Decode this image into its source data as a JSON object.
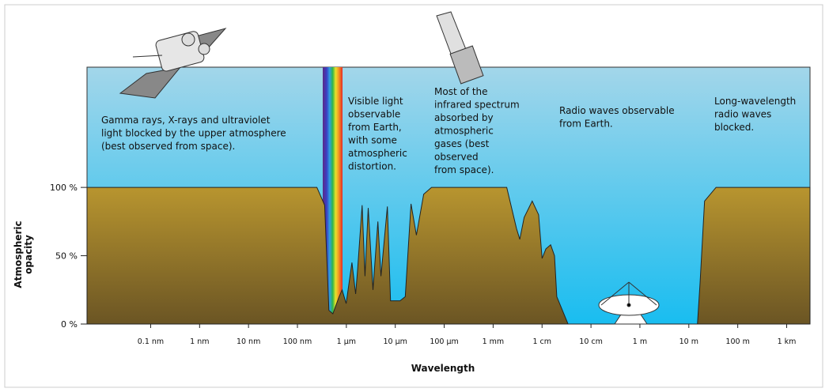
{
  "chart_data": {
    "type": "area",
    "x_label": "Wavelength",
    "y_label": [
      "Atmospheric",
      "opacity"
    ],
    "xscale": "log",
    "xlim": [
      5e-12,
      3000
    ],
    "ylim": [
      0,
      188
    ],
    "xticks": [
      {
        "value": 1e-10,
        "label": "0.1 nm"
      },
      {
        "value": 1e-09,
        "label": "1 nm"
      },
      {
        "value": 1e-08,
        "label": "10 nm"
      },
      {
        "value": 1e-07,
        "label": "100 nm"
      },
      {
        "value": 1e-06,
        "label": "1 µm"
      },
      {
        "value": 1e-05,
        "label": "10 µm"
      },
      {
        "value": 0.0001,
        "label": "100 µm"
      },
      {
        "value": 0.001,
        "label": "1 mm"
      },
      {
        "value": 0.01,
        "label": "1 cm"
      },
      {
        "value": 0.1,
        "label": "10 cm"
      },
      {
        "value": 1,
        "label": "1 m"
      },
      {
        "value": 10,
        "label": "10 m"
      },
      {
        "value": 100,
        "label": "100 m"
      },
      {
        "value": 1000,
        "label": "1 km"
      }
    ],
    "yticks": [
      {
        "value": 0,
        "label": "0 %"
      },
      {
        "value": 50,
        "label": "50 %"
      },
      {
        "value": 100,
        "label": "100 %"
      }
    ],
    "color": "#b08d2e",
    "x": [
      5e-12,
      2.5e-07,
      3.6e-07,
      4.4e-07,
      5.3e-07,
      7.1e-07,
      8.2e-07,
      9.9e-07,
      1.3e-06,
      1.55e-06,
      1.7e-06,
      2.1e-06,
      2.4e-06,
      2.8e-06,
      3.5e-06,
      4.4e-06,
      5.1e-06,
      6.9e-06,
      8e-06,
      1.25e-05,
      1.6e-05,
      2.1e-05,
      2.7e-05,
      3.8e-05,
      5.5e-05,
      0.0019,
      0.003,
      0.0035,
      0.0043,
      0.0063,
      0.0085,
      0.01,
      0.012,
      0.015,
      0.018,
      0.02,
      0.034,
      15,
      17,
      21,
      36,
      3000
    ],
    "values": [
      100,
      100,
      87,
      10,
      7.5,
      20,
      25,
      15,
      45,
      22,
      40,
      87,
      35,
      85,
      25,
      75,
      35,
      86,
      17,
      17,
      20,
      88,
      65,
      95,
      100,
      100,
      70,
      62,
      78,
      90,
      80,
      48,
      55,
      58,
      50,
      20,
      0,
      0,
      30,
      90,
      100,
      100
    ],
    "annotations": [
      [
        "Gamma rays, X-rays and ultraviolet",
        "light blocked by the upper atmosphere",
        "(best observed from space)."
      ],
      [
        "Visible light",
        "observable",
        "from Earth,",
        "with some",
        "atmospheric",
        "distortion."
      ],
      [
        "Most of the",
        "infrared spectrum",
        "absorbed by",
        "atmospheric",
        "gases (best",
        "observed",
        "from space)."
      ],
      [
        "Radio waves observable",
        "from Earth."
      ],
      [
        "Long-wavelength",
        "radio waves",
        "blocked."
      ]
    ]
  }
}
